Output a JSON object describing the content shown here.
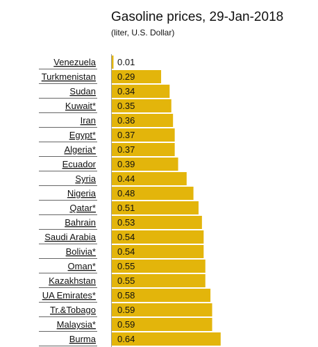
{
  "chart_data": {
    "type": "bar",
    "orientation": "horizontal",
    "title": "Gasoline prices, 29-Jan-2018",
    "subtitle": "(liter, U.S. Dollar)",
    "categories": [
      "Venezuela",
      "Turkmenistan",
      "Sudan",
      "Kuwait*",
      "Iran",
      "Egypt*",
      "Algeria*",
      "Ecuador",
      "Syria",
      "Nigeria",
      "Qatar*",
      "Bahrain",
      "Saudi Arabia",
      "Bolivia*",
      "Oman*",
      "Kazakhstan",
      "UA Emirates*",
      "Tr.&Tobago",
      "Malaysia*",
      "Burma"
    ],
    "values": [
      0.01,
      0.29,
      0.34,
      0.35,
      0.36,
      0.37,
      0.37,
      0.39,
      0.44,
      0.48,
      0.51,
      0.53,
      0.54,
      0.54,
      0.55,
      0.55,
      0.58,
      0.59,
      0.59,
      0.64
    ],
    "value_labels": [
      "0.01",
      "0.29",
      "0.34",
      "0.35",
      "0.36",
      "0.37",
      "0.37",
      "0.39",
      "0.44",
      "0.48",
      "0.51",
      "0.53",
      "0.54",
      "0.54",
      "0.55",
      "0.55",
      "0.58",
      "0.59",
      "0.59",
      "0.64"
    ],
    "bar_color": "#e3b50b",
    "grid": false,
    "legend": "none"
  }
}
